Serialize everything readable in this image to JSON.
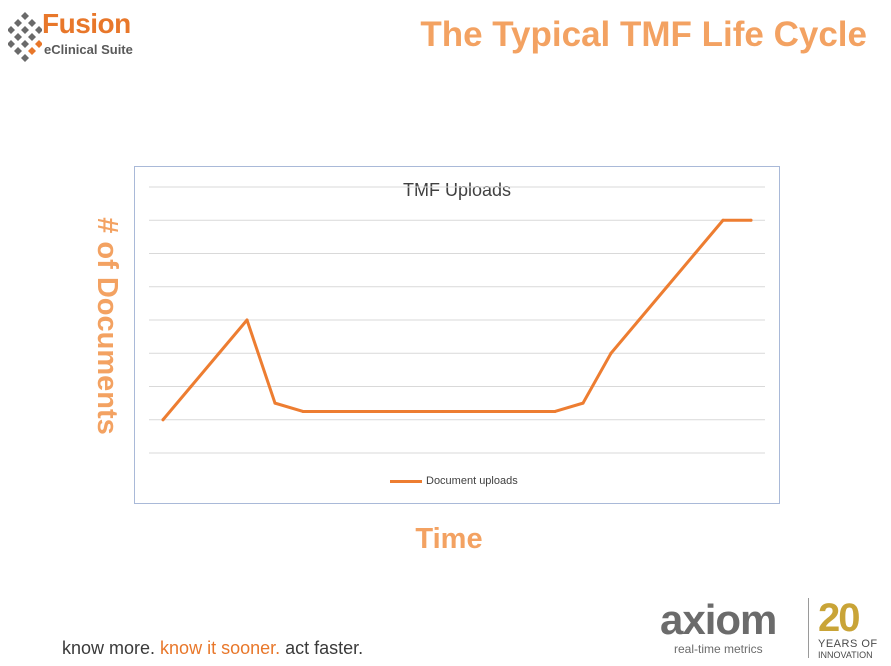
{
  "brand": {
    "fusion_word": "Fusion",
    "fusion_sub": "eClinical Suite",
    "fusion_mark_icon": "diamond-grid-icon"
  },
  "slide": {
    "title": "The Typical TMF Life Cycle",
    "y_title": "# of Documents",
    "x_title": "Time"
  },
  "chart_data": {
    "type": "line",
    "title": "TMF Uploads",
    "xlabel": "",
    "ylabel": "",
    "x": [
      1,
      2,
      3,
      4,
      5,
      6,
      7,
      8,
      9,
      10,
      11,
      12,
      13,
      14,
      15,
      16,
      17,
      18,
      19,
      20,
      21,
      22
    ],
    "series": [
      {
        "name": "Document uploads",
        "color": "#ed7d31",
        "values": [
          3,
          4,
          5,
          6,
          3.5,
          3.25,
          3.25,
          3.25,
          3.25,
          3.25,
          3.25,
          3.25,
          3.25,
          3.25,
          3.25,
          3.5,
          5,
          6,
          7,
          8,
          9,
          9
        ]
      }
    ],
    "ylim": [
      2,
      10
    ],
    "grid": true,
    "legend": "bottom"
  },
  "footer": {
    "tag_a": "know more. ",
    "tag_b": "know it sooner.",
    "tag_c": " act faster."
  },
  "axiom": {
    "word": "axiom",
    "sub": "real-time metrics",
    "anniv_num": "20",
    "anniv_l1": "YEARS OF",
    "anniv_l2": "INNOVATION"
  }
}
